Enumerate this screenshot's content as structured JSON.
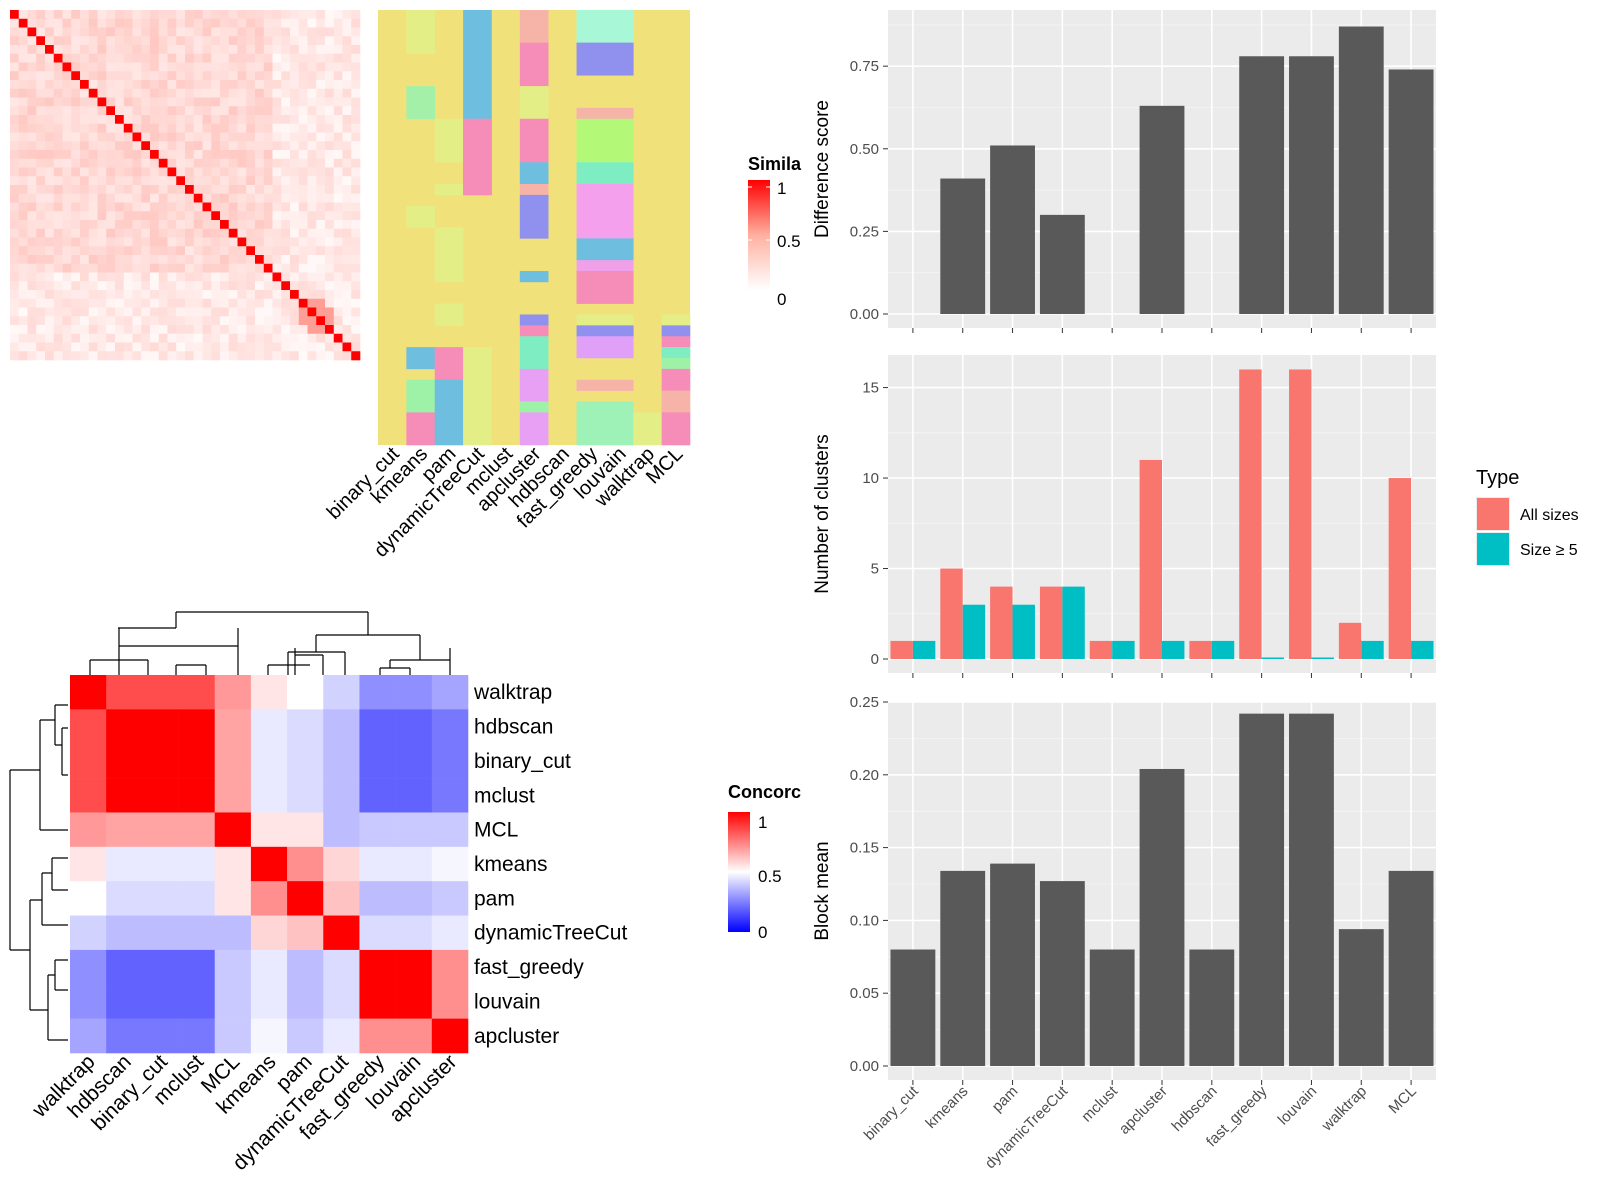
{
  "methods": [
    "binary_cut",
    "kmeans",
    "pam",
    "dynamicTreeCut",
    "mclust",
    "apcluster",
    "hdbscan",
    "fast_greedy",
    "louvain",
    "walktrap",
    "MCL"
  ],
  "colors": {
    "panel_bg": "#EBEBEB",
    "grid": "#FFFFFF",
    "bar": "#595959",
    "all_sizes": "#F8766D",
    "size5": "#00BFC4",
    "heat_high": "#FF0000",
    "heat_low_white": "#FFFFFF",
    "heat_low_blue": "#0000FF",
    "class_base": "#F0E17B"
  },
  "legends": {
    "similarity": {
      "title": "Simila",
      "ticks": [
        "1",
        "0.5",
        "0"
      ]
    },
    "concordance": {
      "title": "Concorc",
      "ticks": [
        "1",
        "0.5",
        "0"
      ]
    },
    "type": {
      "title": "Type",
      "items": [
        "All sizes",
        "Size ≥ 5"
      ]
    }
  },
  "similarity_heatmap": {
    "n_terms": 40,
    "description_legend": "Similarity"
  },
  "class_heatmap": {
    "columns": [
      "binary_cut",
      "kmeans",
      "pam",
      "dynamicTreeCut",
      "mclust",
      "apcluster",
      "hdbscan",
      "fast_greedy",
      "louvain",
      "walktrap",
      "MCL"
    ]
  },
  "concordance_heatmap": {
    "order": [
      "walktrap",
      "hdbscan",
      "binary_cut",
      "mclust",
      "MCL",
      "kmeans",
      "pam",
      "dynamicTreeCut",
      "fast_greedy",
      "louvain",
      "apcluster"
    ],
    "matrix": [
      [
        1.0,
        0.85,
        0.85,
        0.85,
        0.7,
        0.55,
        0.5,
        0.4,
        0.25,
        0.25,
        0.3
      ],
      [
        0.85,
        1.0,
        1.0,
        1.0,
        0.68,
        0.45,
        0.42,
        0.35,
        0.15,
        0.15,
        0.2
      ],
      [
        0.85,
        1.0,
        1.0,
        1.0,
        0.68,
        0.45,
        0.42,
        0.35,
        0.15,
        0.15,
        0.2
      ],
      [
        0.85,
        1.0,
        1.0,
        1.0,
        0.68,
        0.45,
        0.42,
        0.35,
        0.15,
        0.15,
        0.2
      ],
      [
        0.7,
        0.68,
        0.68,
        0.68,
        1.0,
        0.55,
        0.55,
        0.35,
        0.38,
        0.38,
        0.38
      ],
      [
        0.55,
        0.45,
        0.45,
        0.45,
        0.55,
        1.0,
        0.72,
        0.58,
        0.45,
        0.45,
        0.48
      ],
      [
        0.5,
        0.42,
        0.42,
        0.42,
        0.55,
        0.72,
        1.0,
        0.62,
        0.35,
        0.35,
        0.38
      ],
      [
        0.4,
        0.35,
        0.35,
        0.35,
        0.35,
        0.58,
        0.62,
        1.0,
        0.42,
        0.42,
        0.45
      ],
      [
        0.25,
        0.15,
        0.15,
        0.15,
        0.38,
        0.45,
        0.35,
        0.42,
        1.0,
        1.0,
        0.72
      ],
      [
        0.25,
        0.15,
        0.15,
        0.15,
        0.38,
        0.45,
        0.35,
        0.42,
        1.0,
        1.0,
        0.72
      ],
      [
        0.3,
        0.2,
        0.2,
        0.2,
        0.38,
        0.48,
        0.38,
        0.45,
        0.72,
        0.72,
        1.0
      ]
    ]
  },
  "chart_data": [
    {
      "type": "bar",
      "ylabel": "Difference score",
      "categories": [
        "binary_cut",
        "kmeans",
        "pam",
        "dynamicTreeCut",
        "mclust",
        "apcluster",
        "hdbscan",
        "fast_greedy",
        "louvain",
        "walktrap",
        "MCL"
      ],
      "values": [
        0,
        0.41,
        0.51,
        0.3,
        0,
        0.63,
        0,
        0.78,
        0.78,
        0.87,
        0.74
      ],
      "ylim": [
        0,
        0.92
      ],
      "yticks": [
        "0.00",
        "0.25",
        "0.50",
        "0.75"
      ]
    },
    {
      "type": "bar",
      "ylabel": "Number of clusters",
      "categories": [
        "binary_cut",
        "kmeans",
        "pam",
        "dynamicTreeCut",
        "mclust",
        "apcluster",
        "hdbscan",
        "fast_greedy",
        "louvain",
        "walktrap",
        "MCL"
      ],
      "series": [
        {
          "name": "All sizes",
          "values": [
            1,
            5,
            4,
            4,
            1,
            11,
            1,
            16,
            16,
            2,
            10
          ]
        },
        {
          "name": "Size ≥ 5",
          "values": [
            1,
            3,
            3,
            4,
            1,
            1,
            1,
            0,
            0,
            1,
            1
          ]
        }
      ],
      "ylim": [
        0,
        16.8
      ],
      "yticks": [
        "0",
        "5",
        "10",
        "15"
      ]
    },
    {
      "type": "bar",
      "ylabel": "Block mean",
      "categories": [
        "binary_cut",
        "kmeans",
        "pam",
        "dynamicTreeCut",
        "mclust",
        "apcluster",
        "hdbscan",
        "fast_greedy",
        "louvain",
        "walktrap",
        "MCL"
      ],
      "values": [
        0.08,
        0.134,
        0.139,
        0.127,
        0.08,
        0.204,
        0.08,
        0.242,
        0.242,
        0.094,
        0.134
      ],
      "ylim": [
        0,
        0.25
      ],
      "yticks": [
        "0.00",
        "0.05",
        "0.10",
        "0.15",
        "0.20",
        "0.25"
      ]
    }
  ]
}
